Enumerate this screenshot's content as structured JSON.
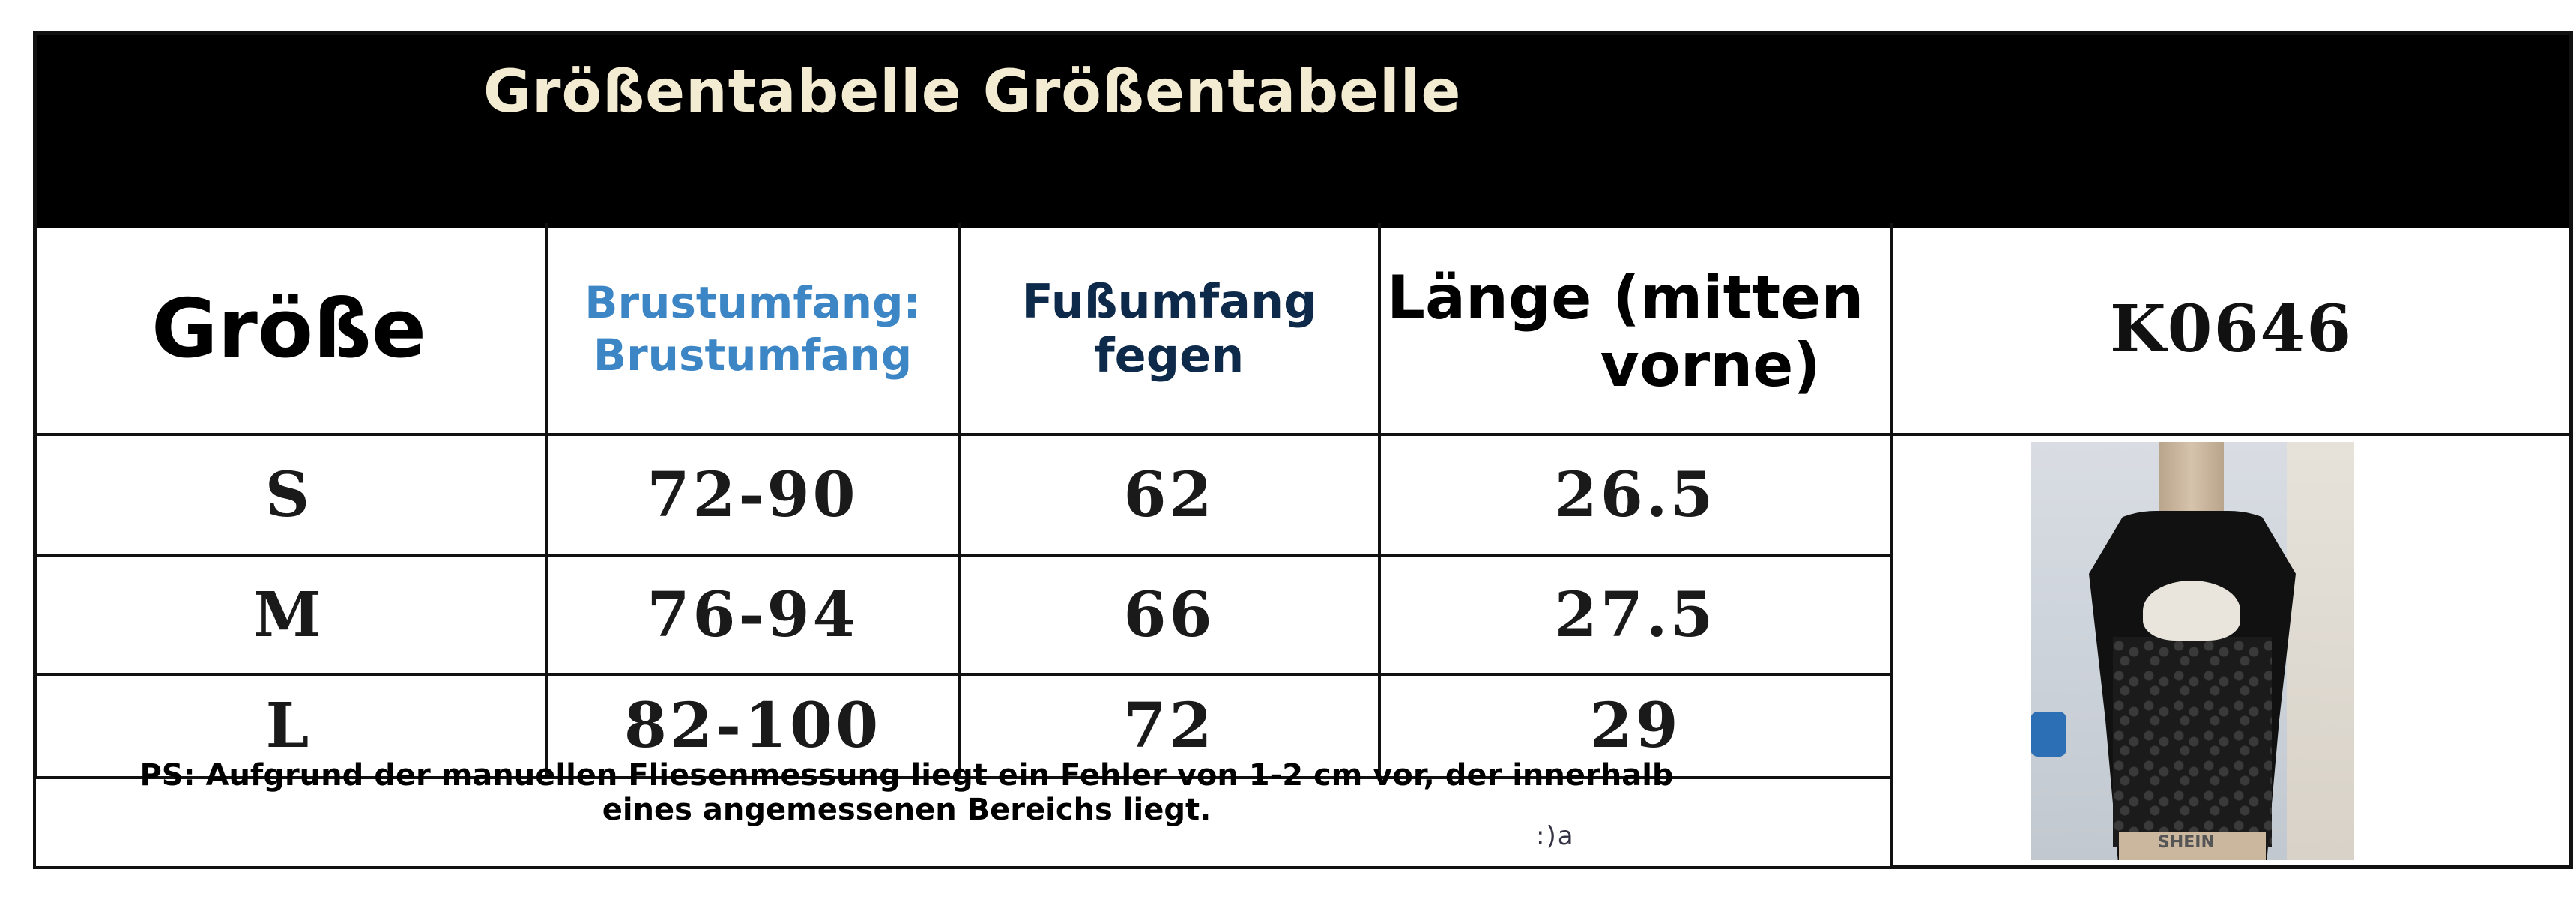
{
  "title": "Größentabelle Größentabelle",
  "headers": {
    "size": "Größe",
    "chest": [
      "Brustumfang:",
      "Brustumfang"
    ],
    "hem": [
      "Fußumfang",
      "fegen"
    ],
    "length": [
      "Länge (mitten",
      "vorne)"
    ],
    "code": "K0646"
  },
  "rows": [
    {
      "size": "S",
      "chest": "72-90",
      "hem": "62",
      "length": "26.5"
    },
    {
      "size": "M",
      "chest": "76-94",
      "hem": "66",
      "length": "27.5"
    },
    {
      "size": "L",
      "chest": "82-100",
      "hem": "72",
      "length": "29"
    }
  ],
  "note": "PS: Aufgrund der manuellen Fliesenmessung liegt ein Fehler von 1-2 cm vor, der innerhalb eines angemessenen Bereichs liegt.",
  "photo_label": "SHEIN",
  "stray_mark": ":)a",
  "colors": {
    "header_bg": "#000000",
    "title_text": "#f4ecd2",
    "chest_header": "#3d86c6",
    "hem_header": "#0e2a4a"
  }
}
